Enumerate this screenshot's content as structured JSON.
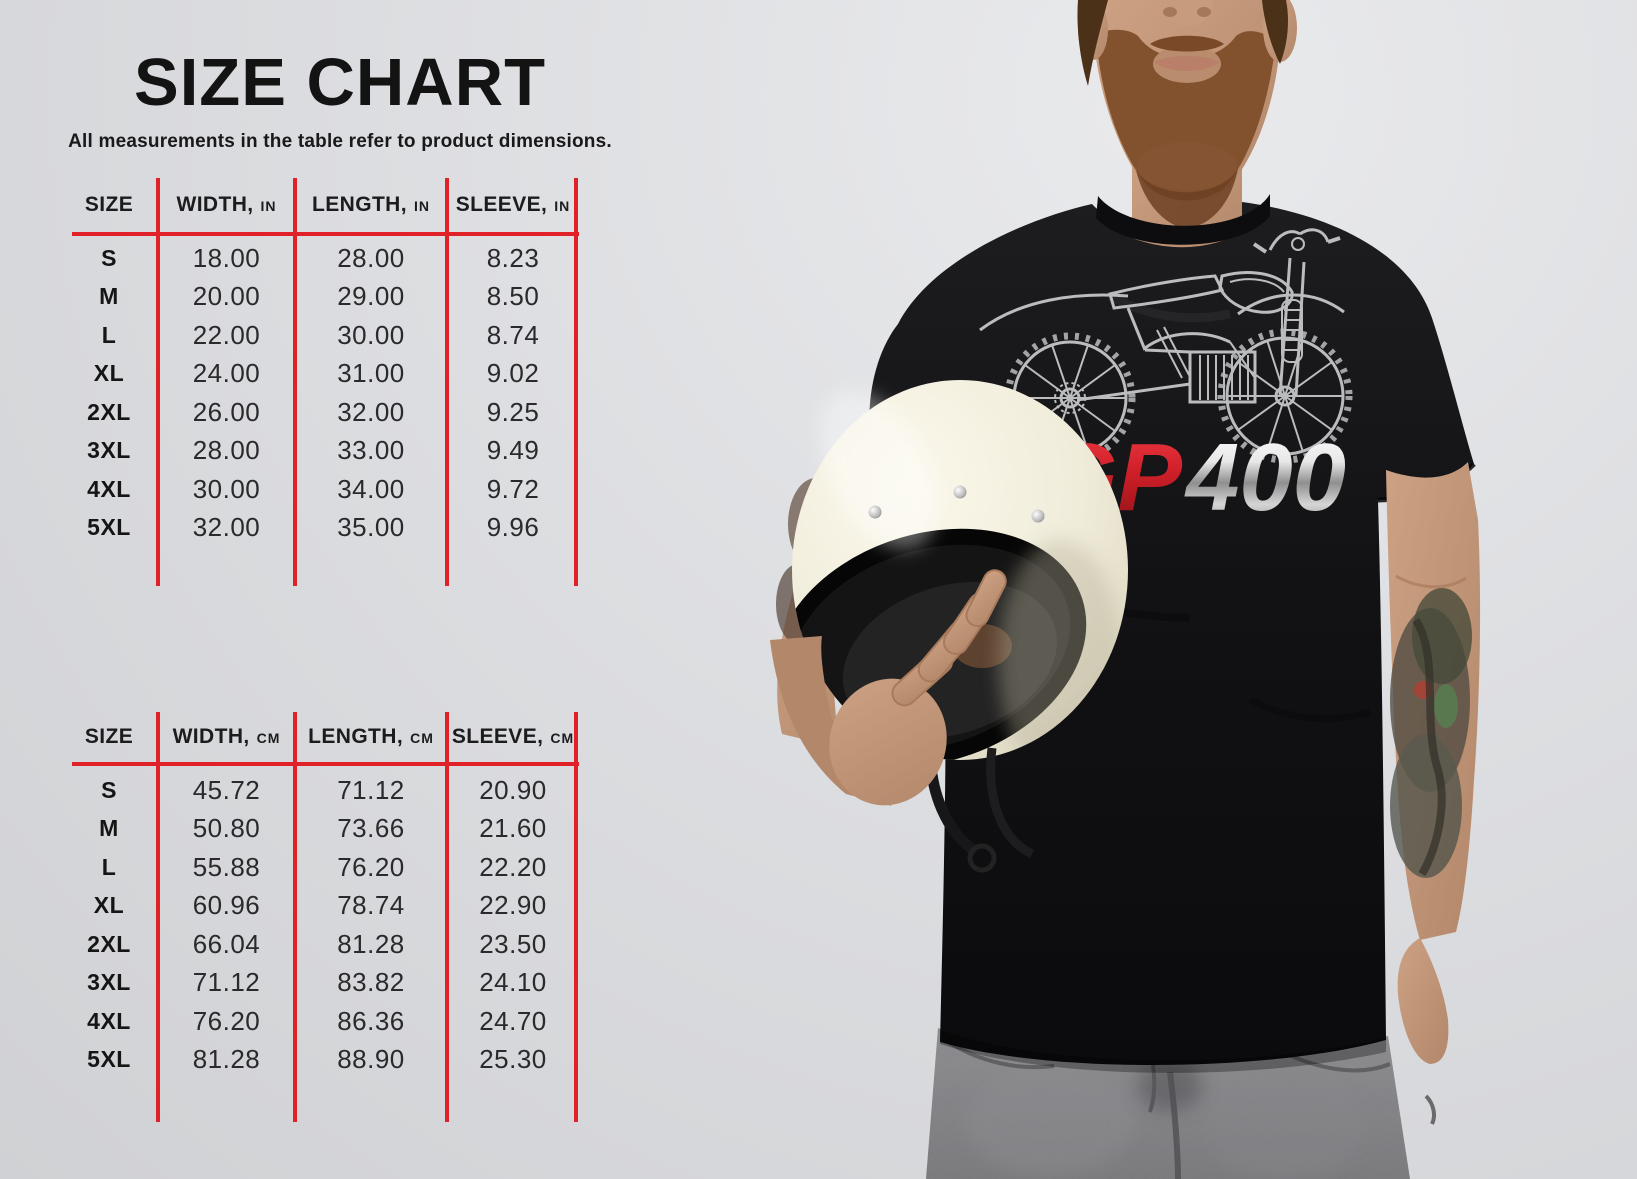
{
  "size_chart": {
    "title": "SIZE CHART",
    "subtitle": "All measurements in the table refer to product dimensions.",
    "tables": [
      {
        "id": "inches",
        "columns": [
          {
            "label": "SIZE",
            "unit": ""
          },
          {
            "label": "WIDTH,",
            "unit": "IN"
          },
          {
            "label": "LENGTH,",
            "unit": "IN"
          },
          {
            "label": "SLEEVE,",
            "unit": "IN"
          }
        ],
        "rows": [
          [
            "S",
            "18.00",
            "28.00",
            "8.23"
          ],
          [
            "M",
            "20.00",
            "29.00",
            "8.50"
          ],
          [
            "L",
            "22.00",
            "30.00",
            "8.74"
          ],
          [
            "XL",
            "24.00",
            "31.00",
            "9.02"
          ],
          [
            "2XL",
            "26.00",
            "32.00",
            "9.25"
          ],
          [
            "3XL",
            "28.00",
            "33.00",
            "9.49"
          ],
          [
            "4XL",
            "30.00",
            "34.00",
            "9.72"
          ],
          [
            "5XL",
            "32.00",
            "35.00",
            "9.96"
          ]
        ]
      },
      {
        "id": "centimeters",
        "columns": [
          {
            "label": "SIZE",
            "unit": ""
          },
          {
            "label": "WIDTH,",
            "unit": "CM"
          },
          {
            "label": "LENGTH,",
            "unit": "CM"
          },
          {
            "label": "SLEEVE,",
            "unit": "CM"
          }
        ],
        "rows": [
          [
            "S",
            "45.72",
            "71.12",
            "20.90"
          ],
          [
            "M",
            "50.80",
            "73.66",
            "21.60"
          ],
          [
            "L",
            "55.88",
            "76.20",
            "22.20"
          ],
          [
            "XL",
            "60.96",
            "78.74",
            "22.90"
          ],
          [
            "2XL",
            "66.04",
            "81.28",
            "23.50"
          ],
          [
            "3XL",
            "71.12",
            "83.82",
            "24.10"
          ],
          [
            "4XL",
            "76.20",
            "86.36",
            "24.70"
          ],
          [
            "5XL",
            "81.28",
            "88.90",
            "25.30"
          ]
        ]
      }
    ]
  },
  "photo": {
    "description": "Bearded man in black t-shirt holding cream vintage full-face helmet",
    "shirt_print": {
      "art": "motorcycle-line-art",
      "text_red": "GP",
      "text_silver": "400"
    }
  },
  "colors": {
    "accent_red": "#e02127",
    "background_gray": "#dcdde0",
    "text_black": "#1b1b1b",
    "shirt_black": "#121214",
    "helmet_cream": "#f1eedd",
    "print_red": "#c6202a",
    "print_silver": "#d9d9d9",
    "jeans_gray": "#707074"
  }
}
